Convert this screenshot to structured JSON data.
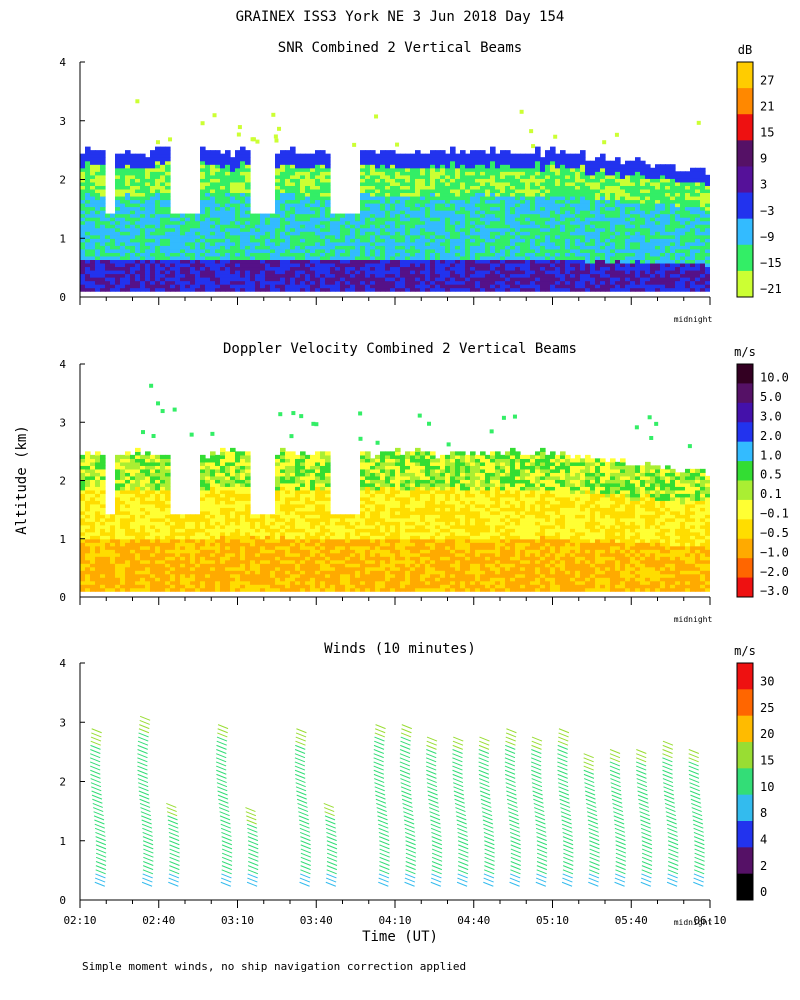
{
  "header": {
    "title": "GRAINEX ISS3 York NE   3 Jun 2018 Day 154"
  },
  "footer": {
    "note": "Simple moment winds, no ship navigation correction applied"
  },
  "shared": {
    "ylabel": "Altitude (km)",
    "xlabel": "Time (UT)",
    "midnight_label": "midnight",
    "colors": {
      "lime": "#ccff33",
      "green": "#33ee66",
      "cyan": "#33bbff",
      "blue": "#2233ee",
      "purple": "#551188",
      "red": "#ee1111",
      "orange": "#ff8800",
      "yellow": "#ffee00"
    }
  },
  "chart_data": [
    {
      "type": "heatmap",
      "title": "SNR Combined 2 Vertical Beams",
      "ylim": [
        0,
        4
      ],
      "yticks": [
        "0",
        "1",
        "2",
        "3",
        "4"
      ],
      "xlim_minutes_since_0210": [
        0,
        240
      ],
      "colorbar": {
        "unit": "dB",
        "labels": [
          "27",
          "21",
          "15",
          "9",
          "3",
          "−3",
          "−9",
          "−15",
          "−21"
        ],
        "colors": [
          "#ffcc00",
          "#ff8800",
          "#ee1111",
          "#551166",
          "#551199",
          "#2233ee",
          "#33bbff",
          "#33ee66",
          "#ccff33"
        ]
      }
    },
    {
      "type": "heatmap",
      "title": "Doppler Velocity Combined 2 Vertical Beams",
      "ylim": [
        0,
        4
      ],
      "yticks": [
        "0",
        "1",
        "2",
        "3",
        "4"
      ],
      "xlim_minutes_since_0210": [
        0,
        240
      ],
      "colorbar": {
        "unit": "m/s",
        "labels": [
          "10.0",
          "5.0",
          "3.0",
          "2.0",
          "1.0",
          "0.5",
          "0.1",
          "−0.1",
          "−0.5",
          "−1.0",
          "−2.0",
          "−3.0"
        ],
        "colors": [
          "#330022",
          "#551166",
          "#4411aa",
          "#2233ee",
          "#33bbff",
          "#33dd33",
          "#aaee33",
          "#ffff33",
          "#ffdd00",
          "#ffaa00",
          "#ff6600",
          "#ee1111"
        ]
      }
    },
    {
      "type": "scatter",
      "title": "Winds (10 minutes)",
      "ylim": [
        0,
        4
      ],
      "yticks": [
        "0",
        "1",
        "2",
        "3",
        "4"
      ],
      "x_tick_labels": [
        "02:10",
        "02:40",
        "03:10",
        "03:40",
        "04:10",
        "04:40",
        "05:10",
        "05:40",
        "06:10"
      ],
      "x_tick_minutes_since_0210": [
        0,
        30,
        60,
        90,
        120,
        150,
        180,
        210,
        240
      ],
      "colorbar": {
        "unit": "m/s",
        "labels": [
          "30",
          "25",
          "20",
          "15",
          "10",
          "8",
          "4",
          "2",
          "0"
        ],
        "colors": [
          "#ee1111",
          "#ff6600",
          "#ffbb00",
          "#99dd33",
          "#33dd77",
          "#33bbee",
          "#2233ee",
          "#551166",
          "#000000"
        ]
      },
      "profiles_minutes": [
        5,
        23,
        33,
        53,
        63,
        83,
        93,
        113,
        123,
        133,
        143,
        153,
        163,
        173,
        183,
        193,
        203,
        213,
        223,
        233
      ],
      "profile_top_km": [
        2.9,
        3.1,
        1.7,
        3.0,
        1.6,
        2.9,
        1.7,
        3.0,
        3.0,
        2.8,
        2.8,
        2.8,
        2.9,
        2.8,
        2.9,
        2.5,
        2.6,
        2.6,
        2.7,
        2.6
      ]
    }
  ]
}
